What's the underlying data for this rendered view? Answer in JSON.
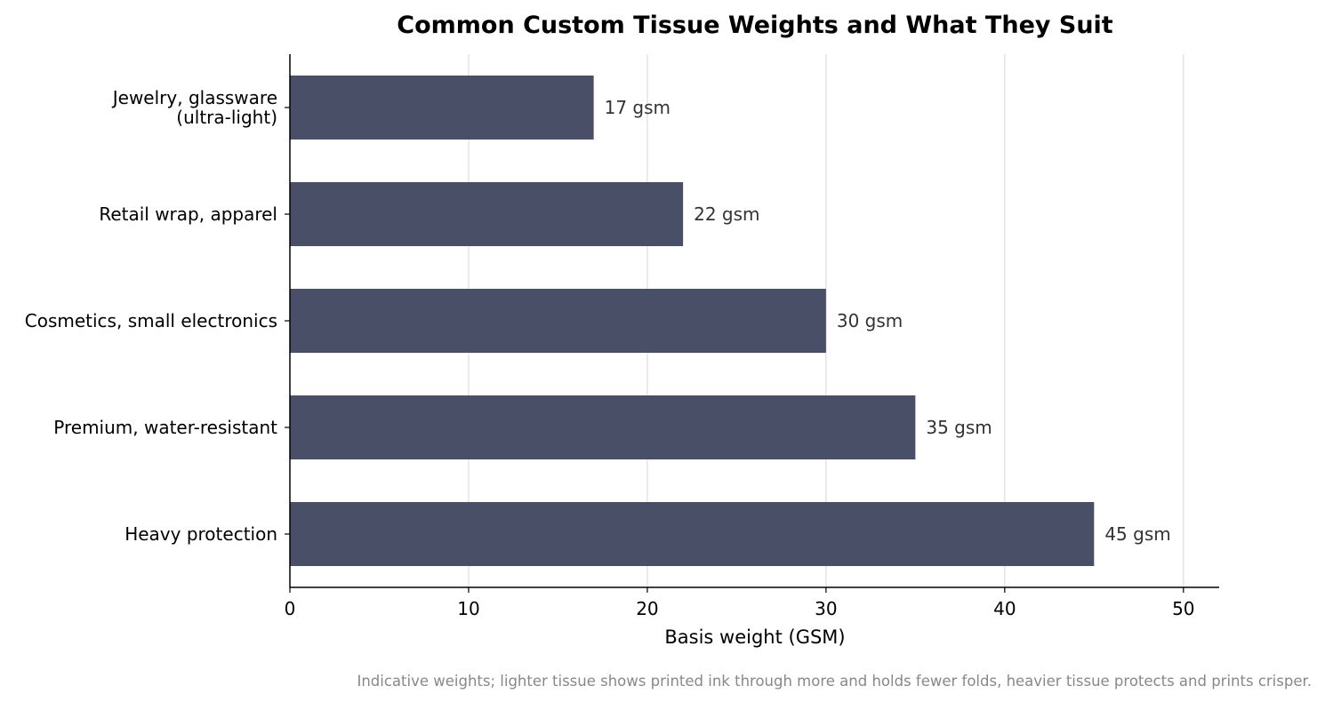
{
  "chart_data": {
    "type": "bar",
    "orientation": "horizontal",
    "title": "Common Custom Tissue Weights and What They Suit",
    "xlabel": "Basis weight (GSM)",
    "ylabel": "",
    "xlim": [
      0,
      52
    ],
    "xticks": [
      0,
      10,
      20,
      30,
      40,
      50
    ],
    "grid": "vertical",
    "legend": "none",
    "bar_color": "#4a4f68",
    "categories": [
      [
        "Jewelry, glassware",
        "(ultra-light)"
      ],
      [
        "Retail wrap, apparel"
      ],
      [
        "Cosmetics, small electronics"
      ],
      [
        "Premium, water-resistant"
      ],
      [
        "Heavy protection"
      ]
    ],
    "values": [
      17,
      22,
      30,
      35,
      45
    ],
    "data_labels": [
      "17 gsm",
      "22 gsm",
      "30 gsm",
      "35 gsm",
      "45 gsm"
    ],
    "note": "Indicative weights; lighter tissue shows printed ink through more and holds fewer folds, heavier tissue protects and prints crisper."
  }
}
